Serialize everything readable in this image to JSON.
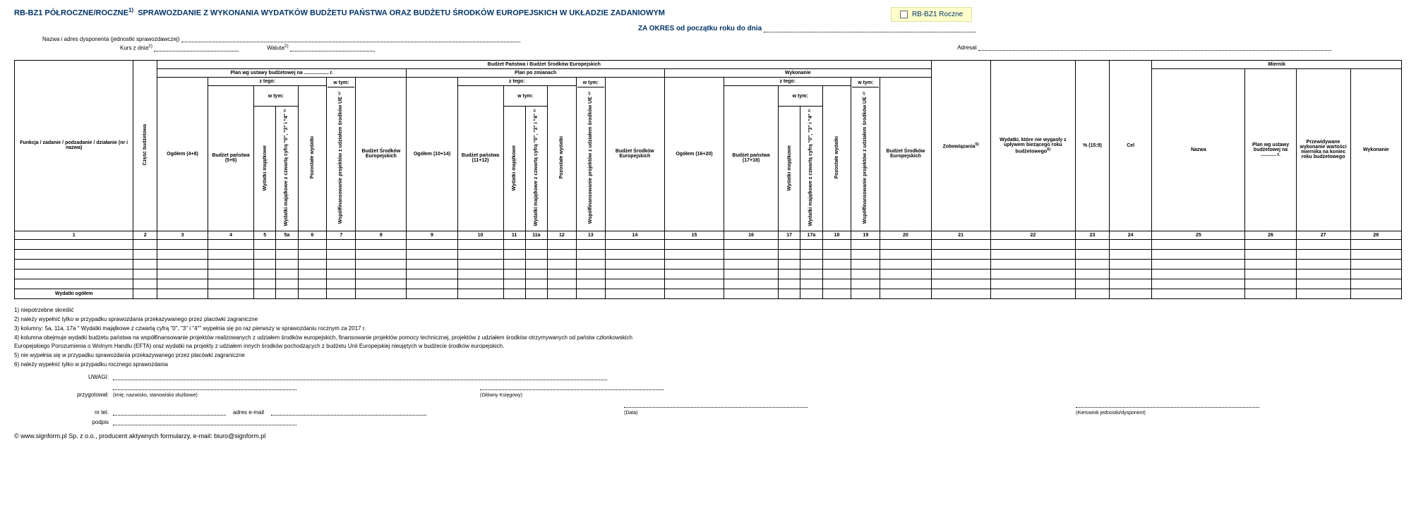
{
  "header": {
    "code": "RB-BZ1 PÓŁROCZNE/ROCZNE",
    "sup": "1)",
    "title": "SPRAWOZDANIE Z WYKONANIA WYDATKÓW BUDŻETU PAŃSTWA ORAZ BUDŻETU ŚRODKÓW EUROPEJSKICH W UKŁADZIE ZADANIOWYM",
    "subtitle_prefix": "ZA OKRES od początku roku do dnia",
    "checkbox_label": "RB-BZ1 Roczne"
  },
  "meta": {
    "disponent_label": "Nazwa i adres dysponenta (jednostki sprawozdawczej)",
    "kurs_label": "Kurs z dnia",
    "kurs_sup": "2)",
    "waluta_label": "Waluta",
    "waluta_sup": "2)",
    "adresat_label": "Adresat"
  },
  "table": {
    "top_group": "Budżet Państwa i Budżet Środków Europejskich",
    "plan_ustawy": "Plan wg ustawy budżetowej na .................. r.",
    "plan_zmiany": "Plan po zmianach",
    "wykonanie": "Wykonanie",
    "miernik": "Miernik",
    "z_tego": "z tego:",
    "w_tym": "w tym:",
    "col1": "Funkcja / zadanie / podzadanie / działanie (nr i nazwa)",
    "col2_vert": "Część budżetowa",
    "ogolem_4_8": "Ogółem (4+8)",
    "budzet_panstwa_5_6": "Budżet państwa (5+6)",
    "wyd_majatkowe": "Wydatki majątkowe",
    "wyd_majatkowe_7": "Wydatki majątkowe z czwartą cyfrą \"0\", \"3\" i \"4\" ³⁾",
    "pozostale": "Pozostałe wydatki",
    "wspol_ue": "Współfinansowanie projektów z udziałem środków UE ⁴⁾",
    "bse": "Budżet Środków Europejskich",
    "ogolem_10_14": "Ogółem (10+14)",
    "budzet_panstwa_11_12": "Budżet państwa (11+12)",
    "ogolem_16_20": "Ogółem (16+20)",
    "budzet_panstwa_17_18": "Budżet państwa (17+18)",
    "zobowiazania": "Zobowiązania",
    "zobowiazania_sup": "5)",
    "wydatki_niewygasle": "Wydatki, które nie wygasły z upływem bieżącego roku budżetowego",
    "wydatki_niewygasle_sup": "6)",
    "pct": "% (15:9)",
    "cel": "Cel",
    "nazwa": "Nazwa",
    "plan_wg_ustawy": "Plan wg ustawy budżetowej na ........... r.",
    "przewidywane": "Przewidywane wykonanie wartości miernika na koniec roku budżetowego",
    "wykonanie_m": "Wykonanie",
    "colnums": [
      "1",
      "2",
      "3",
      "4",
      "5",
      "5a",
      "6",
      "7",
      "8",
      "9",
      "10",
      "11",
      "11a",
      "12",
      "13",
      "14",
      "15",
      "16",
      "17",
      "17a",
      "18",
      "19",
      "20",
      "21",
      "22",
      "23",
      "24",
      "25",
      "26",
      "27",
      "28"
    ],
    "total_row": "Wydatki ogółem",
    "empty_rows": 5
  },
  "footnotes": {
    "f1": "1) niepotrzebne skreślić",
    "f2": "2) należy wypełnić tylko w przypadku sprawozdania przekazywanego przez placówki zagraniczne",
    "f3": "3) kolumny: 5a, 11a, 17a \" Wydatki majątkowe z czwartą cyfrą \"0\", \"3\" i \"4\"\" wypełnia się po raz pierwszy w sprawozdaniu rocznym za 2017 r.",
    "f4": "4) kolumna obejmuje wydatki budżetu państwa na współfinansowanie projektów realizowanych z udziałem środków europejskich, finansowanie projektów pomocy technicznej, projektów z udziałem środków otrzymywanych od państw członkowskich Europejskiego Porozumienia o Wolnym Handlu (EFTA) oraz wydatki na projekty z udziałem innych środków pochodzących z budżetu Unii Europejskiej nieujętych w budżecie środków europejskich.",
    "f5": "5) nie wypełnia się w przypadku sprawozdania przekazywanego przez placówki zagraniczne",
    "f6": "6) należy wypełnić tylko w przypadku rocznego sprawozdania"
  },
  "signatures": {
    "uwagi": "UWAGI:",
    "przygotowal": "przygotował:",
    "przygotowal_under": "(imię, nazwisko, stanowisko służbowe)",
    "glowny": "(Główny Księgowy)",
    "nrtel": "nr tel.",
    "email": "adres e-mail",
    "podpis": "podpis",
    "data": "(Data)",
    "kierownik": "(Kierownik jednostki/dysponent)"
  },
  "copyright": "© www.signform.pl Sp. z o.o., producent aktywnych formularzy, e-mail: biuro@signform.pl",
  "colors": {
    "title": "#003366",
    "checkbox_bg": "#ffffcc",
    "border": "#000000"
  }
}
